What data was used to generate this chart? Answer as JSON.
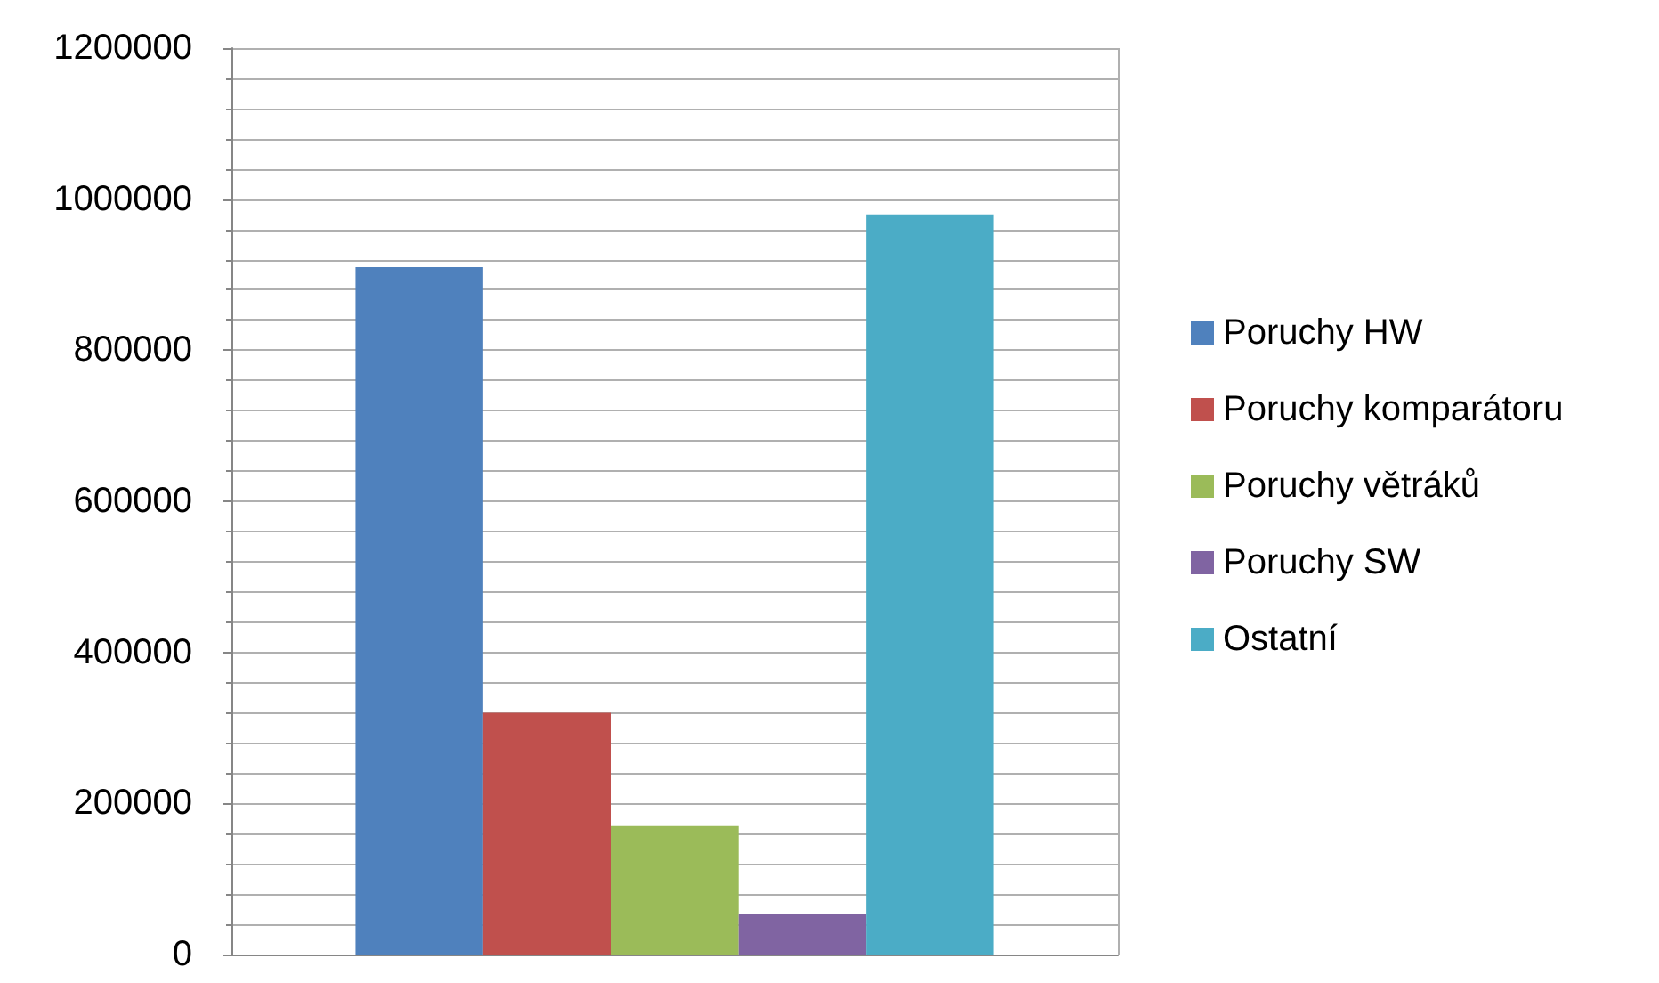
{
  "chart_data": {
    "type": "bar",
    "categories": [
      null
    ],
    "series": [
      {
        "name": "Poruchy HW",
        "color": "#4f81bd",
        "values": [
          910000
        ]
      },
      {
        "name": "Poruchy komparátoru",
        "color": "#c0504d",
        "values": [
          320000
        ]
      },
      {
        "name": "Poruchy větráků",
        "color": "#9bbb59",
        "values": [
          170000
        ]
      },
      {
        "name": "Poruchy SW",
        "color": "#8064a2",
        "values": [
          54000
        ]
      },
      {
        "name": "Ostatní",
        "color": "#4bacc6",
        "values": [
          980000
        ]
      }
    ],
    "ylim": [
      0,
      1200000
    ],
    "yticks": [
      0,
      200000,
      400000,
      600000,
      800000,
      1000000,
      1200000
    ],
    "grid": true,
    "legend": "right"
  }
}
